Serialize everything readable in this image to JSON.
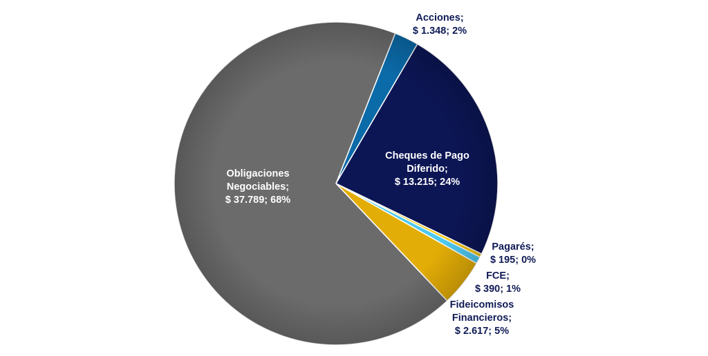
{
  "chart_data": {
    "type": "pie",
    "title": "",
    "currency": "$",
    "slices": [
      {
        "name": "Acciones",
        "value": "1.348",
        "percent": "2%",
        "color": "#0b6aa8",
        "lines": [
          "Acciones;",
          "$ 1.348; 2%"
        ]
      },
      {
        "name": "Cheques de Pago Diferido",
        "value": "13.215",
        "percent": "24%",
        "color": "#0c1655",
        "lines": [
          "Cheques de Pago",
          "Diferido;",
          "$ 13.215; 24%"
        ]
      },
      {
        "name": "Pagarés",
        "value": "195",
        "percent": "0%",
        "color": "#f2c200",
        "lines": [
          "Pagarés;",
          "$ 195; 0%"
        ]
      },
      {
        "name": "FCE",
        "value": "390",
        "percent": "1%",
        "color": "#4fc9f0",
        "lines": [
          "FCE;",
          "$ 390; 1%"
        ]
      },
      {
        "name": "Fideicomisos Financieros",
        "value": "2.617",
        "percent": "5%",
        "color": "#e3ad07",
        "lines": [
          "Fideicomisos",
          "Financieros;",
          "$ 2.617; 5%"
        ]
      },
      {
        "name": "Obligaciones Negociables",
        "value": "37.789",
        "percent": "68%",
        "color": "#6b6b6b",
        "lines": [
          "Obligaciones",
          "Negociables;",
          "$ 37.789; 68%"
        ]
      }
    ]
  }
}
